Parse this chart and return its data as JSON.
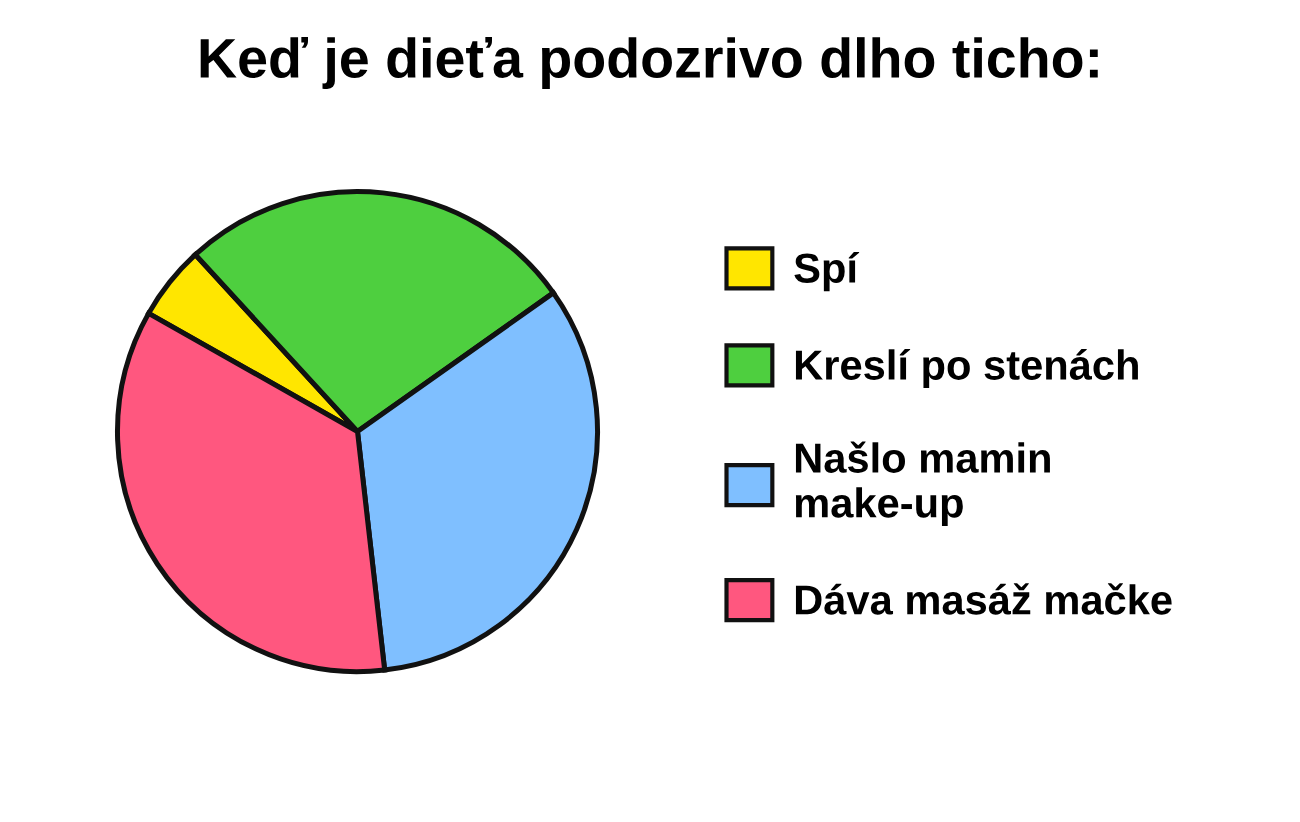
{
  "chart_data": {
    "type": "pie",
    "title": "Keď je dieťa podozrivo dlho ticho:",
    "categories": [
      "Spí",
      "Kreslí po stenách",
      "Našlo mamin\nmake-up",
      "Dáva masáž mačke"
    ],
    "values": [
      5,
      27,
      33,
      35
    ],
    "colors": [
      "#ffe600",
      "#4ecf3f",
      "#7fbfff",
      "#ff577f"
    ],
    "legend": "right"
  }
}
